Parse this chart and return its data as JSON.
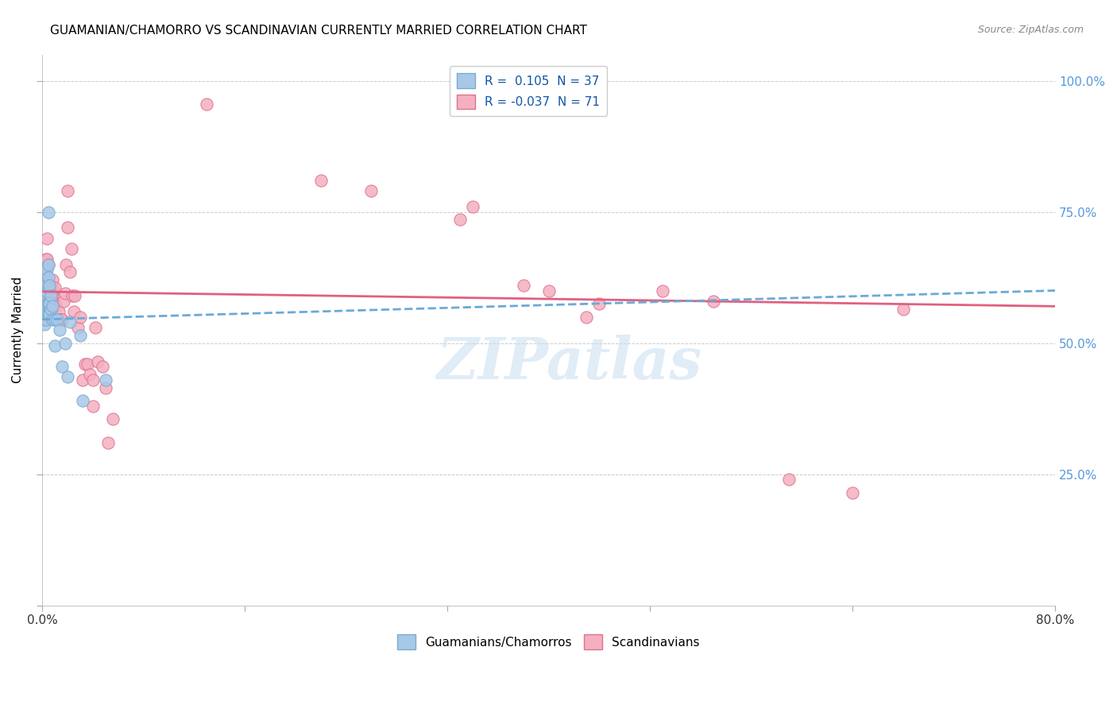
{
  "title": "GUAMANIAN/CHAMORRO VS SCANDINAVIAN CURRENTLY MARRIED CORRELATION CHART",
  "source": "Source: ZipAtlas.com",
  "ylabel": "Currently Married",
  "watermark": "ZIPatlas",
  "blue_color": "#a8c8e8",
  "blue_edge_color": "#7aaad0",
  "pink_color": "#f4b0c0",
  "pink_edge_color": "#e07090",
  "blue_line_color": "#6aaad8",
  "pink_line_color": "#e06080",
  "blue_scatter": [
    [
      0.001,
      0.555
    ],
    [
      0.001,
      0.575
    ],
    [
      0.002,
      0.535
    ],
    [
      0.002,
      0.565
    ],
    [
      0.002,
      0.595
    ],
    [
      0.003,
      0.545
    ],
    [
      0.003,
      0.57
    ],
    [
      0.003,
      0.6
    ],
    [
      0.003,
      0.63
    ],
    [
      0.004,
      0.555
    ],
    [
      0.004,
      0.575
    ],
    [
      0.004,
      0.61
    ],
    [
      0.004,
      0.64
    ],
    [
      0.005,
      0.555
    ],
    [
      0.005,
      0.575
    ],
    [
      0.005,
      0.605
    ],
    [
      0.005,
      0.625
    ],
    [
      0.005,
      0.65
    ],
    [
      0.005,
      0.75
    ],
    [
      0.006,
      0.555
    ],
    [
      0.006,
      0.575
    ],
    [
      0.006,
      0.61
    ],
    [
      0.007,
      0.565
    ],
    [
      0.007,
      0.59
    ],
    [
      0.008,
      0.545
    ],
    [
      0.008,
      0.57
    ],
    [
      0.01,
      0.545
    ],
    [
      0.01,
      0.495
    ],
    [
      0.012,
      0.545
    ],
    [
      0.014,
      0.525
    ],
    [
      0.016,
      0.455
    ],
    [
      0.018,
      0.5
    ],
    [
      0.02,
      0.435
    ],
    [
      0.022,
      0.54
    ],
    [
      0.03,
      0.515
    ],
    [
      0.032,
      0.39
    ],
    [
      0.05,
      0.43
    ]
  ],
  "pink_scatter": [
    [
      0.001,
      0.545
    ],
    [
      0.001,
      0.57
    ],
    [
      0.001,
      0.6
    ],
    [
      0.002,
      0.555
    ],
    [
      0.002,
      0.58
    ],
    [
      0.002,
      0.615
    ],
    [
      0.003,
      0.56
    ],
    [
      0.003,
      0.59
    ],
    [
      0.003,
      0.62
    ],
    [
      0.003,
      0.66
    ],
    [
      0.004,
      0.56
    ],
    [
      0.004,
      0.59
    ],
    [
      0.004,
      0.62
    ],
    [
      0.004,
      0.66
    ],
    [
      0.004,
      0.7
    ],
    [
      0.005,
      0.56
    ],
    [
      0.005,
      0.585
    ],
    [
      0.005,
      0.615
    ],
    [
      0.005,
      0.65
    ],
    [
      0.006,
      0.555
    ],
    [
      0.006,
      0.58
    ],
    [
      0.006,
      0.61
    ],
    [
      0.007,
      0.565
    ],
    [
      0.007,
      0.59
    ],
    [
      0.007,
      0.61
    ],
    [
      0.008,
      0.56
    ],
    [
      0.008,
      0.59
    ],
    [
      0.008,
      0.62
    ],
    [
      0.009,
      0.575
    ],
    [
      0.009,
      0.6
    ],
    [
      0.01,
      0.575
    ],
    [
      0.01,
      0.605
    ],
    [
      0.011,
      0.57
    ],
    [
      0.012,
      0.545
    ],
    [
      0.013,
      0.56
    ],
    [
      0.014,
      0.545
    ],
    [
      0.015,
      0.545
    ],
    [
      0.016,
      0.545
    ],
    [
      0.017,
      0.58
    ],
    [
      0.018,
      0.595
    ],
    [
      0.019,
      0.65
    ],
    [
      0.02,
      0.72
    ],
    [
      0.02,
      0.79
    ],
    [
      0.022,
      0.635
    ],
    [
      0.023,
      0.68
    ],
    [
      0.024,
      0.59
    ],
    [
      0.025,
      0.56
    ],
    [
      0.026,
      0.59
    ],
    [
      0.028,
      0.53
    ],
    [
      0.03,
      0.55
    ],
    [
      0.032,
      0.43
    ],
    [
      0.034,
      0.46
    ],
    [
      0.036,
      0.46
    ],
    [
      0.038,
      0.44
    ],
    [
      0.04,
      0.43
    ],
    [
      0.04,
      0.38
    ],
    [
      0.042,
      0.53
    ],
    [
      0.044,
      0.465
    ],
    [
      0.048,
      0.455
    ],
    [
      0.05,
      0.415
    ],
    [
      0.052,
      0.31
    ],
    [
      0.056,
      0.355
    ],
    [
      0.13,
      0.955
    ],
    [
      0.22,
      0.81
    ],
    [
      0.26,
      0.79
    ],
    [
      0.33,
      0.735
    ],
    [
      0.34,
      0.76
    ],
    [
      0.38,
      0.61
    ],
    [
      0.4,
      0.6
    ],
    [
      0.43,
      0.55
    ],
    [
      0.44,
      0.575
    ],
    [
      0.49,
      0.6
    ],
    [
      0.53,
      0.58
    ],
    [
      0.59,
      0.24
    ],
    [
      0.64,
      0.215
    ],
    [
      0.68,
      0.565
    ]
  ],
  "blue_trend_x": [
    0.0,
    0.8
  ],
  "blue_trend_y": [
    0.545,
    0.6
  ],
  "pink_trend_x": [
    0.0,
    0.8
  ],
  "pink_trend_y": [
    0.598,
    0.57
  ],
  "xlim": [
    0.0,
    0.8
  ],
  "ylim": [
    0.0,
    1.05
  ],
  "ytick_vals": [
    0.0,
    0.25,
    0.5,
    0.75,
    1.0
  ],
  "ytick_labels": [
    "",
    "25.0%",
    "50.0%",
    "75.0%",
    "100.0%"
  ],
  "xtick_vals": [
    0.0,
    0.16,
    0.32,
    0.48,
    0.64,
    0.8
  ],
  "xtick_labels": [
    "0.0%",
    "",
    "",
    "",
    "",
    "80.0%"
  ]
}
